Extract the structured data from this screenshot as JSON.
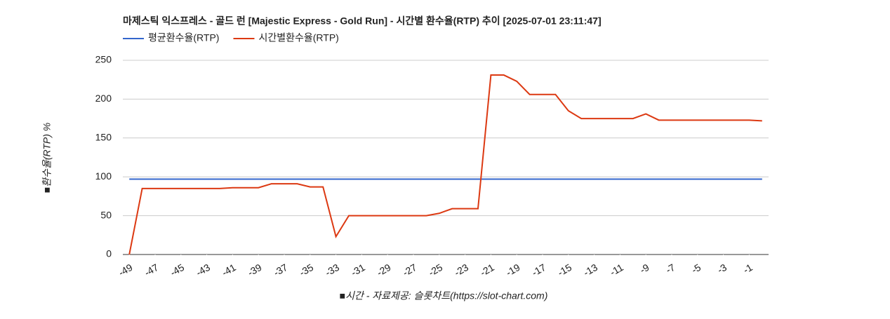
{
  "chart_data": {
    "type": "line",
    "title": "마제스틱 익스프레스 - 골드 런 [Majestic Express - Gold Run] - 시간별 환수율(RTP) 추이 [2025-07-01 23:11:47]",
    "x_label": "■시간 - 자료제공: 슬롯차트(https://slot-chart.com)",
    "y_label": "■환수율(RTP) %",
    "x": [
      -49,
      -48,
      -47,
      -46,
      -45,
      -44,
      -43,
      -42,
      -41,
      -40,
      -39,
      -38,
      -37,
      -36,
      -35,
      -34,
      -33,
      -32,
      -31,
      -30,
      -29,
      -28,
      -27,
      -26,
      -25,
      -24,
      -23,
      -22,
      -21,
      -20,
      -19,
      -18,
      -17,
      -16,
      -15,
      -14,
      -13,
      -12,
      -11,
      -10,
      -9,
      -8,
      -7,
      -6,
      -5,
      -4,
      -3,
      -2,
      -1,
      0
    ],
    "series": [
      {
        "name": "평균환수율(RTP)",
        "color": "#3366cc",
        "values": [
          97,
          97,
          97,
          97,
          97,
          97,
          97,
          97,
          97,
          97,
          97,
          97,
          97,
          97,
          97,
          97,
          97,
          97,
          97,
          97,
          97,
          97,
          97,
          97,
          97,
          97,
          97,
          97,
          97,
          97,
          97,
          97,
          97,
          97,
          97,
          97,
          97,
          97,
          97,
          97,
          97,
          97,
          97,
          97,
          97,
          97,
          97,
          97,
          97,
          97
        ]
      },
      {
        "name": "시간별환수율(RTP)",
        "color": "#dc3912",
        "values": [
          0,
          85,
          85,
          85,
          85,
          85,
          85,
          85,
          86,
          86,
          86,
          91,
          91,
          91,
          87,
          87,
          23,
          50,
          50,
          50,
          50,
          50,
          50,
          50,
          53,
          59,
          59,
          59,
          231,
          231,
          223,
          206,
          206,
          206,
          185,
          175,
          175,
          175,
          175,
          175,
          181,
          173,
          173,
          173,
          173,
          173,
          173,
          173,
          173,
          172
        ]
      }
    ],
    "xlim": [
      -49.5,
      0.5
    ],
    "xticks": [
      -49,
      -47,
      -45,
      -43,
      -41,
      -39,
      -37,
      -35,
      -33,
      -31,
      -29,
      -27,
      -25,
      -23,
      -21,
      -19,
      -17,
      -15,
      -13,
      -11,
      -9,
      -7,
      -5,
      -3,
      -1
    ],
    "ylim": [
      0,
      250
    ],
    "yticks": [
      0,
      50,
      100,
      150,
      200,
      250
    ],
    "grid": true
  }
}
